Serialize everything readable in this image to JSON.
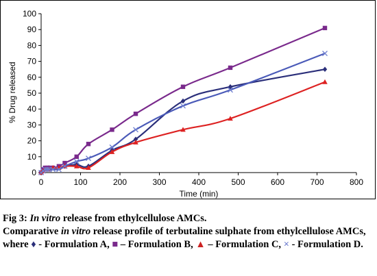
{
  "chart_data": {
    "type": "line",
    "xlabel": "Time (min)",
    "ylabel": "% Drug released",
    "xlim": [
      0,
      800
    ],
    "ylim": [
      0,
      100
    ],
    "x_ticks": [
      0,
      100,
      200,
      300,
      400,
      500,
      600,
      700,
      800
    ],
    "y_ticks": [
      0,
      10,
      20,
      30,
      40,
      50,
      60,
      70,
      80,
      90,
      100
    ],
    "grid": false,
    "series": [
      {
        "name": "Formulation A",
        "color": "#2b2f7a",
        "marker": "diamond",
        "x": [
          0,
          5,
          10,
          15,
          20,
          30,
          45,
          60,
          90,
          120,
          180,
          240,
          360,
          480,
          720
        ],
        "y": [
          0,
          1,
          2,
          2.5,
          3,
          3,
          3,
          4,
          5,
          4,
          14,
          21,
          45,
          54,
          65
        ]
      },
      {
        "name": "Formulation B",
        "color": "#7a2a8c",
        "marker": "square",
        "x": [
          0,
          5,
          10,
          15,
          20,
          30,
          45,
          60,
          90,
          120,
          180,
          240,
          360,
          480,
          720
        ],
        "y": [
          0,
          2,
          3,
          3,
          3,
          3,
          4,
          6,
          10,
          18,
          27,
          37,
          54,
          66,
          91
        ]
      },
      {
        "name": "Formulation C",
        "color": "#dd2222",
        "marker": "triangle",
        "x": [
          0,
          5,
          10,
          15,
          20,
          30,
          45,
          60,
          90,
          120,
          180,
          240,
          360,
          480,
          720
        ],
        "y": [
          0,
          1,
          2,
          2,
          2,
          3,
          3,
          4,
          4,
          3,
          13,
          19,
          27,
          34,
          57
        ]
      },
      {
        "name": "Formulation D",
        "color": "#4a5ab8",
        "marker": "x",
        "x": [
          0,
          5,
          10,
          15,
          20,
          30,
          45,
          60,
          90,
          120,
          180,
          240,
          360,
          480,
          720
        ],
        "y": [
          0,
          1,
          2,
          2,
          2,
          2,
          2,
          4,
          7,
          9,
          16,
          27,
          42,
          52,
          75
        ]
      }
    ]
  },
  "caption": {
    "fig_label": "Fig 3: ",
    "fig_italic": "In vitro",
    "fig_rest": " release from ethylcellulose AMCs.",
    "body_1": "Comparative ",
    "body_italic": "in vitro",
    "body_2": " release profile of terbutaline sulphate from ethylcellulose AMCs, where ",
    "sym_a": "♦",
    "text_a": " - Formulation A, ",
    "sym_b": "■",
    "text_b": " – Formulation B, ",
    "sym_c": "▲",
    "text_c": " – Formulation C, ",
    "sym_d": "×",
    "text_d": " - Formulation D."
  }
}
